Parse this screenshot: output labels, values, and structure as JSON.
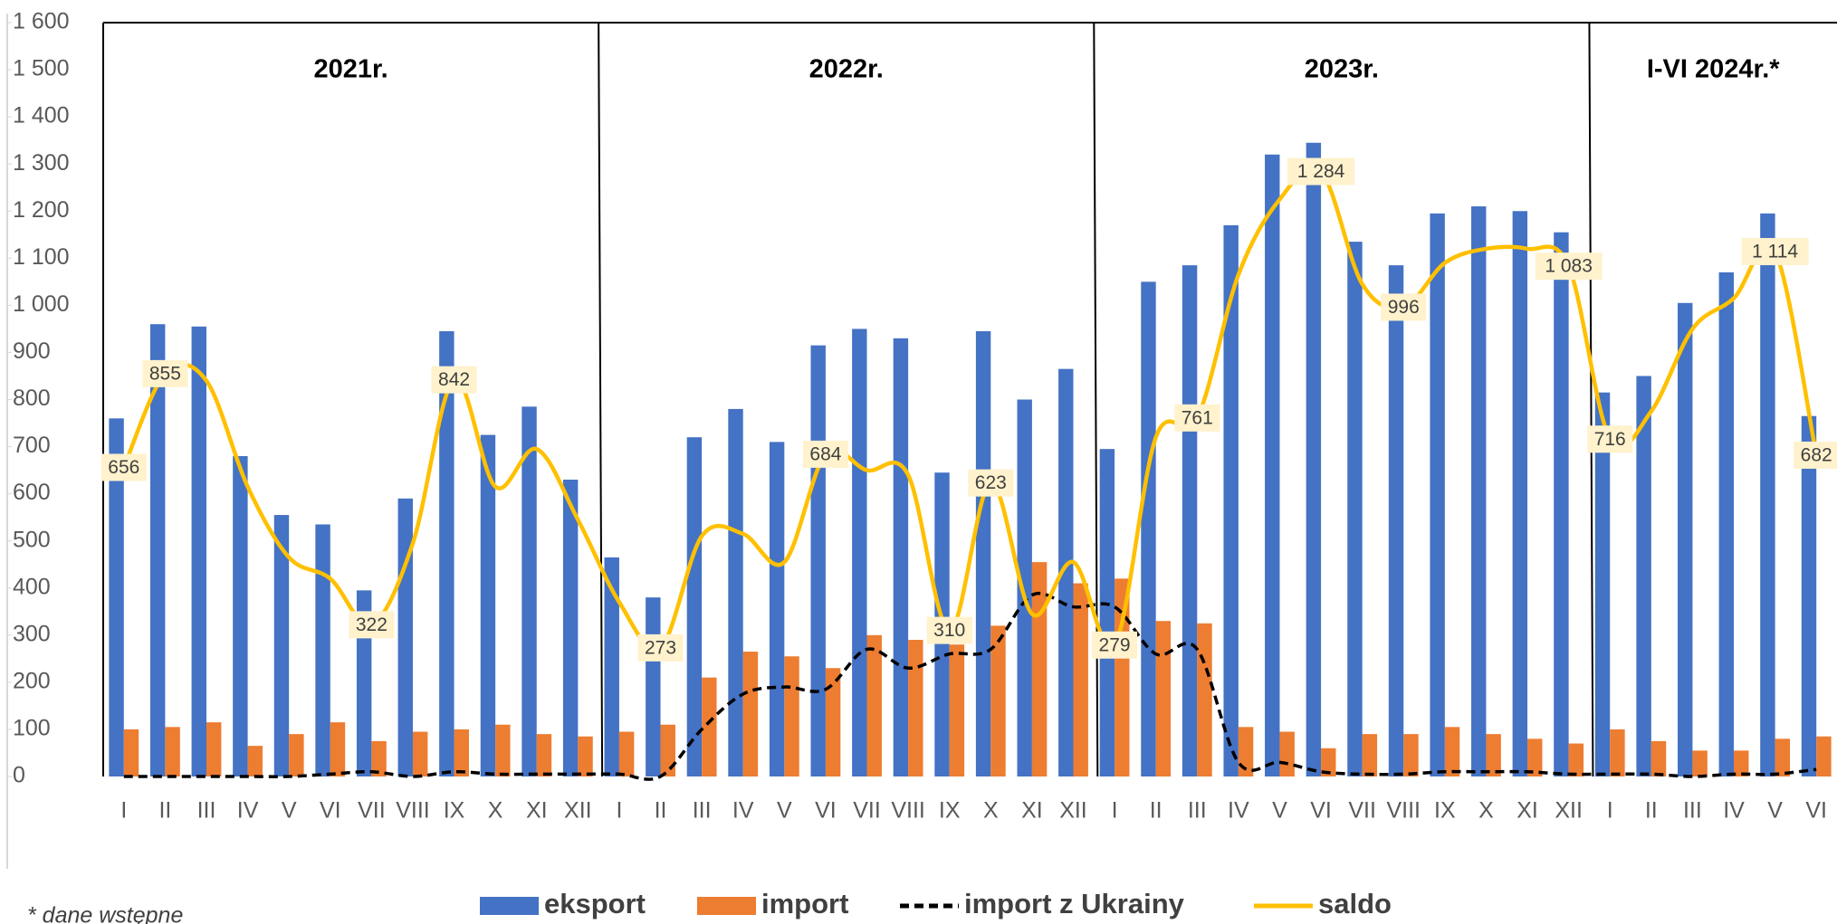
{
  "chart_data": {
    "type": "bar-line",
    "categories": [
      "I",
      "II",
      "III",
      "IV",
      "V",
      "VI",
      "VII",
      "VIII",
      "IX",
      "X",
      "XI",
      "XII",
      "I",
      "II",
      "III",
      "IV",
      "V",
      "VI",
      "VII",
      "VIII",
      "IX",
      "X",
      "XI",
      "XII",
      "I",
      "II",
      "III",
      "IV",
      "V",
      "VI",
      "VII",
      "VIII",
      "IX",
      "X",
      "XI",
      "XII",
      "I",
      "II",
      "III",
      "IV",
      "V",
      "VI"
    ],
    "period_labels": [
      "2021r.",
      "2022r.",
      "2023r.",
      "I-VI 2024r.*"
    ],
    "footnote": "* dane wstępne",
    "ylim": [
      0,
      1600
    ],
    "yticks": [
      0,
      100,
      200,
      300,
      400,
      500,
      600,
      700,
      800,
      900,
      {
        "value": 1000,
        "label": "1 000"
      },
      {
        "value": 1100,
        "label": "1 100"
      },
      {
        "value": 1200,
        "label": "1 200"
      },
      {
        "value": 1300,
        "label": "1 300"
      },
      {
        "value": 1400,
        "label": "1 400"
      },
      {
        "value": 1500,
        "label": "1 500"
      },
      {
        "value": 1600,
        "label": "1 600"
      }
    ],
    "series": [
      {
        "name": "eksport",
        "kind": "bar",
        "color": "#4472c4",
        "values": [
          760,
          960,
          955,
          680,
          555,
          535,
          395,
          590,
          945,
          725,
          785,
          630,
          465,
          380,
          720,
          780,
          710,
          915,
          950,
          930,
          645,
          945,
          800,
          865,
          695,
          1050,
          1085,
          1170,
          1320,
          1345,
          1135,
          1085,
          1195,
          1210,
          1200,
          1155,
          815,
          850,
          1005,
          1070,
          1195,
          765
        ]
      },
      {
        "name": "import",
        "kind": "bar",
        "color": "#ed7d31",
        "values": [
          100,
          105,
          115,
          65,
          90,
          115,
          75,
          95,
          100,
          110,
          90,
          85,
          95,
          110,
          210,
          265,
          255,
          230,
          300,
          290,
          280,
          320,
          455,
          410,
          420,
          330,
          325,
          105,
          95,
          60,
          90,
          90,
          105,
          90,
          80,
          70,
          100,
          75,
          55,
          55,
          80,
          85
        ]
      },
      {
        "name": "import z Ukrainy",
        "kind": "line",
        "dashed": true,
        "color": "#000000",
        "values": [
          0,
          0,
          0,
          0,
          0,
          5,
          10,
          0,
          10,
          5,
          5,
          5,
          5,
          0,
          100,
          175,
          190,
          185,
          270,
          230,
          260,
          270,
          385,
          360,
          360,
          260,
          270,
          30,
          30,
          10,
          5,
          5,
          10,
          10,
          10,
          5,
          5,
          5,
          0,
          5,
          5,
          15
        ]
      },
      {
        "name": "saldo",
        "kind": "line",
        "color": "#ffc000",
        "values": [
          656,
          855,
          840,
          615,
          465,
          420,
          322,
          495,
          842,
          615,
          695,
          545,
          370,
          273,
          510,
          515,
          455,
          684,
          650,
          640,
          310,
          623,
          345,
          455,
          279,
          720,
          761,
          1065,
          1225,
          1284,
          1045,
          996,
          1090,
          1120,
          1120,
          1083,
          716,
          775,
          950,
          1015,
          1114,
          682
        ],
        "value_labels": [
          "656",
          "855",
          null,
          null,
          null,
          null,
          "322",
          null,
          "842",
          null,
          null,
          null,
          null,
          "273",
          null,
          null,
          null,
          "684",
          null,
          null,
          "310",
          "623",
          null,
          null,
          "279",
          null,
          "761",
          null,
          null,
          "1 284",
          null,
          "996",
          null,
          null,
          null,
          "1 083",
          "716",
          null,
          null,
          null,
          "1 114",
          "682"
        ]
      }
    ]
  }
}
